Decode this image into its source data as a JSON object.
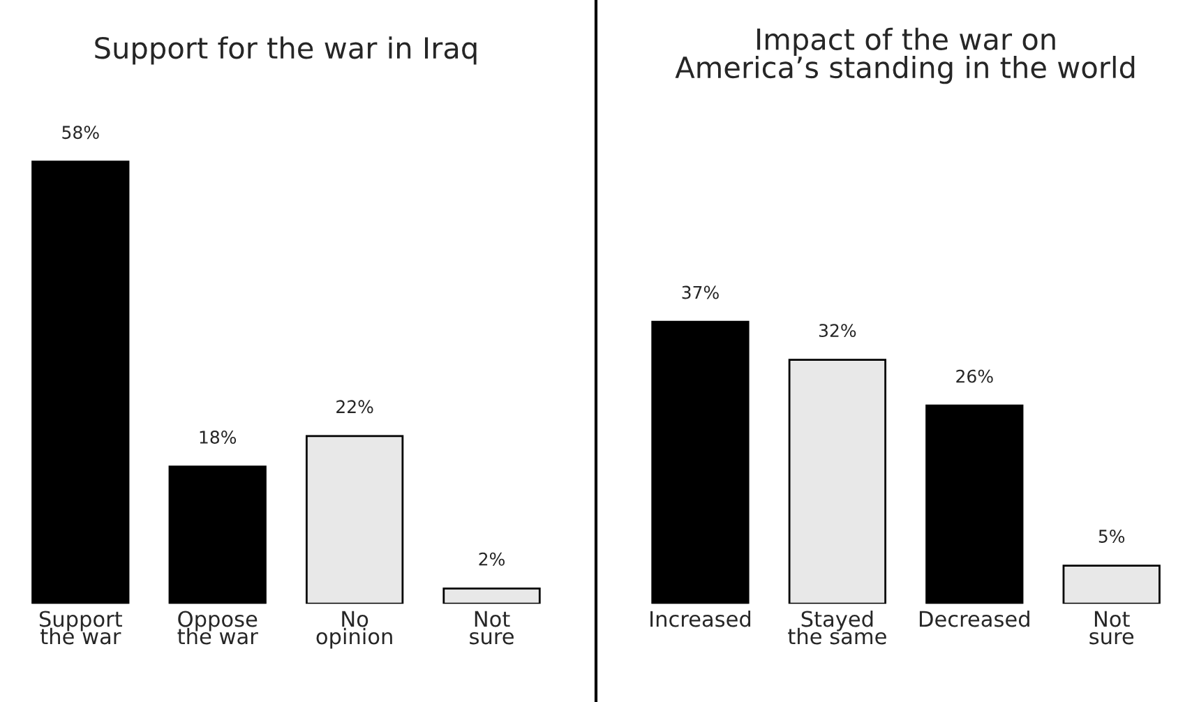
{
  "chart_data": [
    {
      "type": "bar",
      "title": "Support for the war in Iraq",
      "categories": [
        "Support\nthe war",
        "Oppose\nthe war",
        "No\nopinion",
        "Not\nsure"
      ],
      "values": [
        58,
        18,
        22,
        2
      ],
      "value_labels": [
        "58%",
        "18%",
        "22%",
        "2%"
      ],
      "colors": [
        "#000000",
        "#000000",
        "#e8e8e8",
        "#e8e8e8"
      ],
      "tick_labels": "x"
    },
    {
      "type": "bar",
      "title": "Impact of the war on\nAmerica’s standing in the world",
      "categories": [
        "Increased",
        "Stayed\nthe same",
        "Decreased",
        "Not\nsure"
      ],
      "values": [
        37,
        32,
        26,
        5
      ],
      "value_labels": [
        "37%",
        "32%",
        "26%",
        "5%"
      ],
      "colors": [
        "#000000",
        "#e8e8e8",
        "#000000",
        "#e8e8e8"
      ],
      "tick_labels": "x"
    }
  ]
}
